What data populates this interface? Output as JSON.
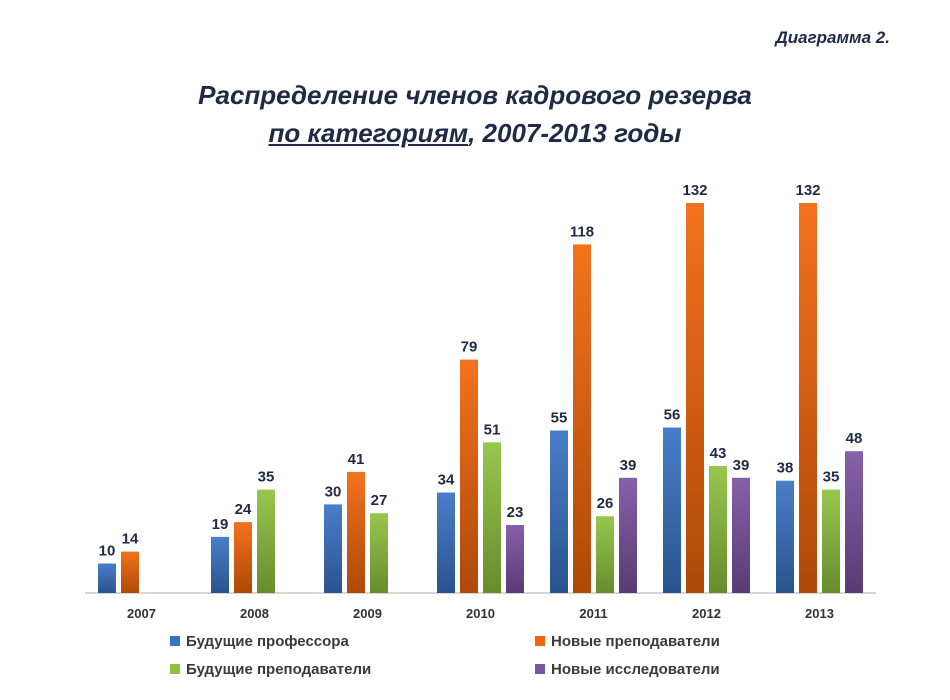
{
  "header": {
    "diagram_number": "Диаграмма 2.",
    "title_line1": "Распределение членов кадрового резерва",
    "title_line2_underlined": "по категориям",
    "title_line2_rest": ", 2007-2013 годы"
  },
  "chart_data": {
    "type": "bar",
    "categories": [
      "2007",
      "2008",
      "2009",
      "2010",
      "2011",
      "2012",
      "2013"
    ],
    "series": [
      {
        "name": "Будущие профессора",
        "color": "#3a73c4",
        "values": [
          10,
          19,
          30,
          34,
          55,
          56,
          38
        ]
      },
      {
        "name": "Новые преподаватели",
        "color": "#f2660a",
        "values": [
          14,
          24,
          41,
          79,
          118,
          132,
          132
        ]
      },
      {
        "name": "Будущие преподаватели",
        "color": "#8fc23f",
        "values": [
          null,
          35,
          27,
          51,
          26,
          43,
          35
        ]
      },
      {
        "name": "Новые исследователи",
        "color": "#7b52a1",
        "values": [
          null,
          null,
          null,
          23,
          39,
          39,
          48
        ]
      }
    ],
    "ylim": [
      0,
      140
    ],
    "grid": false,
    "legend_position": "bottom",
    "data_labels": true
  }
}
